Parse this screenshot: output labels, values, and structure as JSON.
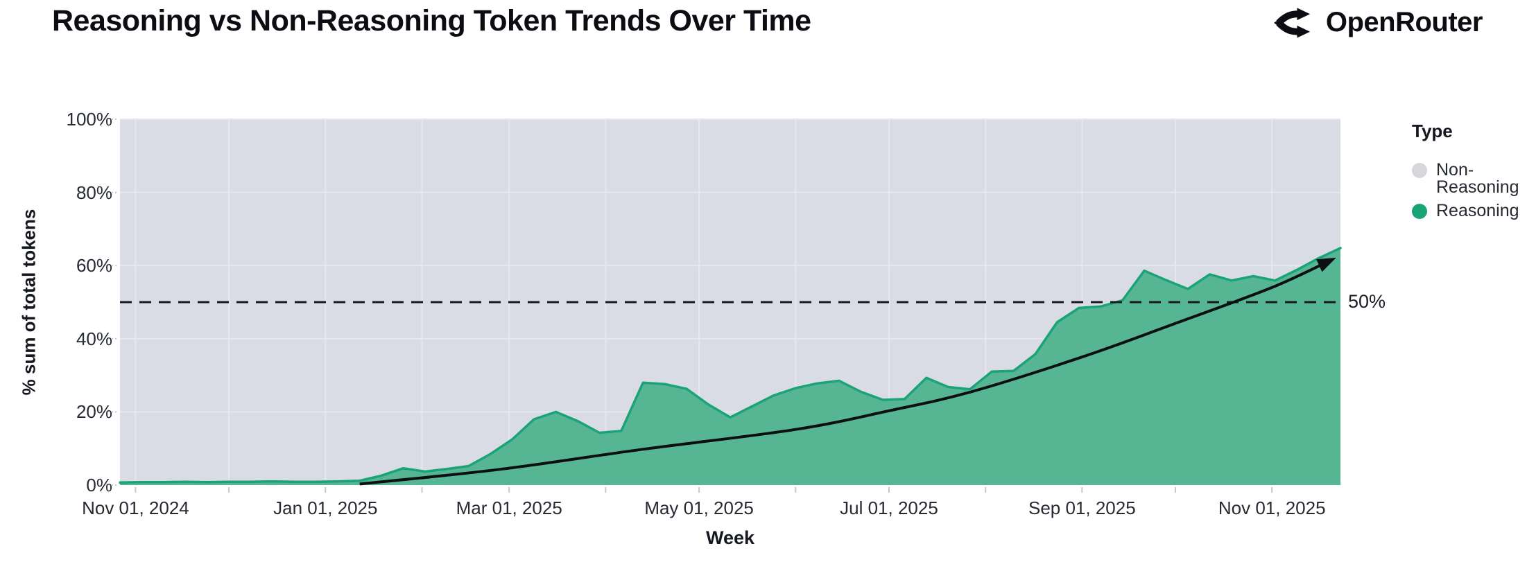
{
  "header": {
    "title": "Reasoning vs Non-Reasoning Token Trends Over Time",
    "brand": "OpenRouter"
  },
  "chart_data": {
    "type": "area",
    "subtype": "100%-stacked-share",
    "title": "Reasoning vs Non-Reasoning Token Trends Over Time",
    "xlabel": "Week",
    "ylabel": "% sum of total tokens",
    "ylim": [
      0,
      100
    ],
    "x_range": [
      "2024-10-27",
      "2025-11-23"
    ],
    "grid": true,
    "colors": {
      "plot_background_non_reasoning": "#d9dce5",
      "reasoning_fill": "#56b694",
      "reasoning_stroke": "#1aa378",
      "gridline": "#e6e8ef",
      "trend_arrow": "#0d0f13"
    },
    "y_ticks": [
      {
        "value": 0,
        "label": "0%"
      },
      {
        "value": 20,
        "label": "20%"
      },
      {
        "value": 40,
        "label": "40%"
      },
      {
        "value": 60,
        "label": "60%"
      },
      {
        "value": 80,
        "label": "80%"
      },
      {
        "value": 100,
        "label": "100%"
      }
    ],
    "x_ticks": [
      {
        "date": "2024-11-01",
        "label": "Nov 01, 2024"
      },
      {
        "date": "2025-01-01",
        "label": "Jan 01, 2025"
      },
      {
        "date": "2025-03-01",
        "label": "Mar 01, 2025"
      },
      {
        "date": "2025-05-01",
        "label": "May 01, 2025"
      },
      {
        "date": "2025-07-01",
        "label": "Jul 01, 2025"
      },
      {
        "date": "2025-09-01",
        "label": "Sep 01, 2025"
      },
      {
        "date": "2025-11-01",
        "label": "Nov 01, 2025"
      }
    ],
    "x_grid_dates": [
      "2024-11-01",
      "2024-12-01",
      "2025-01-01",
      "2025-02-01",
      "2025-03-01",
      "2025-04-01",
      "2025-05-01",
      "2025-06-01",
      "2025-07-01",
      "2025-08-01",
      "2025-09-01",
      "2025-10-01",
      "2025-11-01"
    ],
    "legend": {
      "title": "Type",
      "items": [
        {
          "label": "Non-Reasoning",
          "color": "#d6d6db"
        },
        {
          "label": "Reasoning",
          "color": "#1aa378"
        }
      ]
    },
    "reference_line": {
      "value": 50,
      "label": "50%"
    },
    "series": [
      {
        "name": "Reasoning",
        "unit": "% of total tokens per week",
        "points": [
          [
            "2024-10-27",
            0.7
          ],
          [
            "2024-11-03",
            0.8
          ],
          [
            "2024-11-10",
            0.8
          ],
          [
            "2024-11-17",
            0.9
          ],
          [
            "2024-11-24",
            0.8
          ],
          [
            "2024-12-01",
            0.9
          ],
          [
            "2024-12-08",
            0.9
          ],
          [
            "2024-12-15",
            1.0
          ],
          [
            "2024-12-22",
            0.9
          ],
          [
            "2024-12-29",
            0.9
          ],
          [
            "2025-01-05",
            1.0
          ],
          [
            "2025-01-12",
            1.2
          ],
          [
            "2025-01-19",
            2.6
          ],
          [
            "2025-01-26",
            4.6
          ],
          [
            "2025-02-02",
            3.7
          ],
          [
            "2025-02-09",
            4.4
          ],
          [
            "2025-02-16",
            5.2
          ],
          [
            "2025-02-23",
            8.5
          ],
          [
            "2025-03-02",
            12.5
          ],
          [
            "2025-03-09",
            18.0
          ],
          [
            "2025-03-16",
            20.0
          ],
          [
            "2025-03-23",
            17.5
          ],
          [
            "2025-03-30",
            14.3
          ],
          [
            "2025-04-06",
            14.8
          ],
          [
            "2025-04-13",
            28.0
          ],
          [
            "2025-04-20",
            27.6
          ],
          [
            "2025-04-27",
            26.3
          ],
          [
            "2025-05-04",
            22.0
          ],
          [
            "2025-05-11",
            18.5
          ],
          [
            "2025-05-18",
            21.5
          ],
          [
            "2025-05-25",
            24.5
          ],
          [
            "2025-06-01",
            26.5
          ],
          [
            "2025-06-08",
            27.8
          ],
          [
            "2025-06-15",
            28.5
          ],
          [
            "2025-06-22",
            25.5
          ],
          [
            "2025-06-29",
            23.3
          ],
          [
            "2025-07-06",
            23.5
          ],
          [
            "2025-07-13",
            29.3
          ],
          [
            "2025-07-20",
            26.8
          ],
          [
            "2025-07-27",
            26.2
          ],
          [
            "2025-08-03",
            31.0
          ],
          [
            "2025-08-10",
            31.2
          ],
          [
            "2025-08-17",
            35.8
          ],
          [
            "2025-08-24",
            44.5
          ],
          [
            "2025-08-31",
            48.4
          ],
          [
            "2025-09-07",
            48.8
          ],
          [
            "2025-09-14",
            50.5
          ],
          [
            "2025-09-21",
            58.6
          ],
          [
            "2025-09-28",
            56.0
          ],
          [
            "2025-10-05",
            53.6
          ],
          [
            "2025-10-12",
            57.6
          ],
          [
            "2025-10-19",
            55.9
          ],
          [
            "2025-10-26",
            57.1
          ],
          [
            "2025-11-02",
            55.9
          ],
          [
            "2025-11-09",
            58.8
          ],
          [
            "2025-11-16",
            62.0
          ],
          [
            "2025-11-23",
            64.8
          ]
        ]
      },
      {
        "name": "Non-Reasoning",
        "note": "complement of Reasoning; fills remainder to 100%"
      }
    ],
    "trend_arrow": {
      "description": "black exponential trend arrow",
      "points": [
        [
          "2025-01-12",
          0.3
        ],
        [
          "2025-02-26",
          4.3
        ],
        [
          "2025-04-13",
          9.8
        ],
        [
          "2025-06-01",
          15.2
        ],
        [
          "2025-07-01",
          20.3
        ],
        [
          "2025-07-27",
          25.4
        ],
        [
          "2025-09-01",
          35.0
        ],
        [
          "2025-10-02",
          44.5
        ],
        [
          "2025-11-01",
          54.0
        ],
        [
          "2025-11-20",
          61.5
        ]
      ]
    }
  }
}
